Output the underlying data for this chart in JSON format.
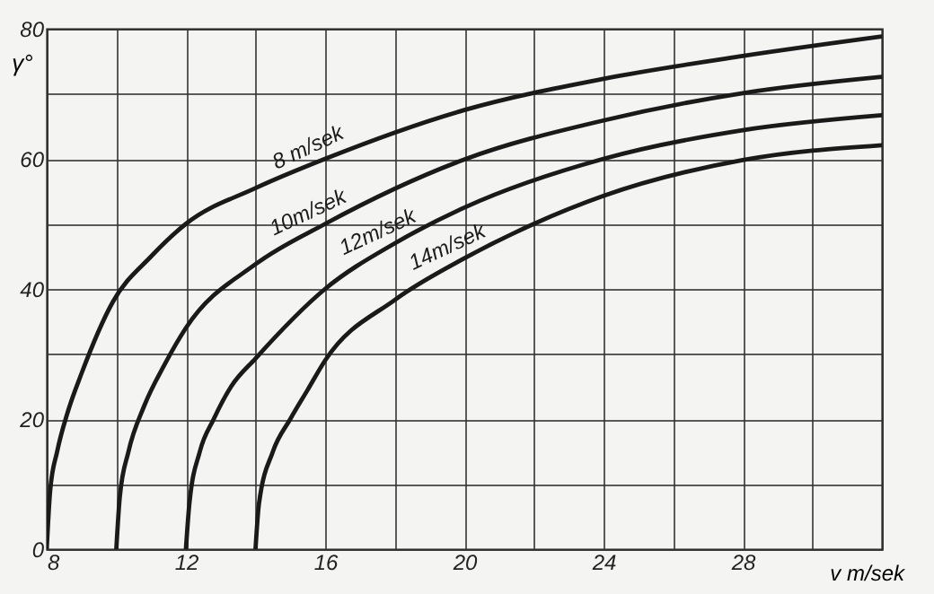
{
  "chart_data": {
    "type": "line",
    "xlabel": "v m/sek",
    "ylabel": "γ°",
    "xlim": [
      8,
      32
    ],
    "ylim": [
      0,
      80
    ],
    "xticks": [
      8,
      {
        "value": 10,
        "label": null
      },
      12,
      {
        "value": 14,
        "label": null
      },
      16,
      {
        "value": 18,
        "label": null
      },
      20,
      {
        "value": 22,
        "label": null
      },
      24,
      {
        "value": 26,
        "label": null
      },
      28,
      {
        "value": 30,
        "label": null
      },
      {
        "value": 32,
        "label": null
      }
    ],
    "yticks": [
      0,
      {
        "value": 10,
        "label": null
      },
      20,
      {
        "value": 30,
        "label": null
      },
      40,
      {
        "value": 50,
        "label": null
      },
      60,
      {
        "value": 70,
        "label": null
      },
      80
    ],
    "grid": true,
    "line_style": "solid",
    "series": [
      {
        "name": "8 m/sek",
        "color": "#1a1a1a",
        "x": [
          8,
          8.1,
          8.3,
          8.6,
          9,
          9.9,
          11,
          12,
          14,
          16,
          20,
          24,
          28,
          32
        ],
        "values": [
          0,
          9,
          15,
          21,
          27,
          38,
          45,
          50,
          55.5,
          60,
          67.5,
          72.3,
          75.8,
          78.8
        ]
      },
      {
        "name": "10m/sek",
        "color": "#1a1a1a",
        "x": [
          10,
          10.1,
          10.35,
          10.8,
          11.4,
          12,
          14,
          16,
          20,
          24,
          28,
          32
        ],
        "values": [
          0,
          8,
          15,
          22,
          28.5,
          34,
          43.8,
          50,
          59.9,
          65.9,
          70.1,
          72.6
        ]
      },
      {
        "name": "12m/sek",
        "color": "#1a1a1a",
        "x": [
          12,
          12.1,
          12.4,
          12.8,
          13.3,
          14,
          16,
          18,
          20,
          24,
          28,
          32
        ],
        "values": [
          0,
          7,
          15,
          20,
          25,
          29.3,
          40,
          47,
          52.5,
          60,
          64.4,
          66.7
        ]
      },
      {
        "name": "14m/sek",
        "color": "#1a1a1a",
        "x": [
          14,
          14.1,
          14.5,
          15,
          15.5,
          16,
          18,
          20,
          22,
          24,
          28,
          32
        ],
        "values": [
          0,
          7,
          15,
          20,
          24.5,
          29,
          38.3,
          44.7,
          50,
          54.3,
          59.8,
          62.1
        ]
      }
    ]
  }
}
